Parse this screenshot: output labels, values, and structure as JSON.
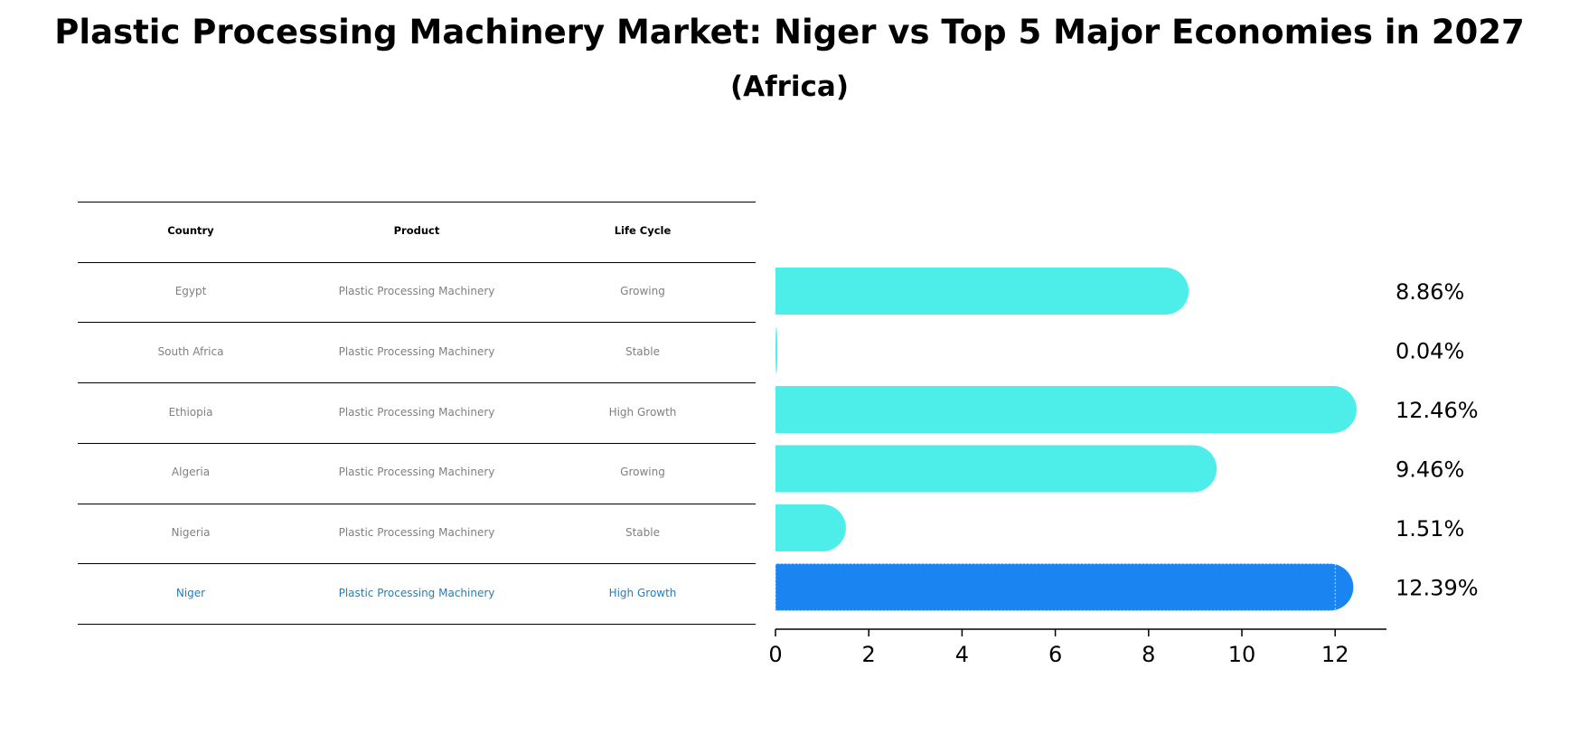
{
  "title": "Plastic Processing Machinery Market: Niger vs Top 5 Major Economies in 2027",
  "subtitle": "(Africa)",
  "colors": {
    "bar": "#4DEEEA",
    "highlight": "#1A84F0",
    "highlight_text": "#1F7FBF"
  },
  "table": {
    "headers": [
      "Country",
      "Product",
      "Life Cycle"
    ],
    "rows": [
      {
        "country": "Egypt",
        "product": "Plastic Processing Machinery",
        "lifecycle": "Growing",
        "highlight": false
      },
      {
        "country": "South Africa",
        "product": "Plastic Processing Machinery",
        "lifecycle": "Stable",
        "highlight": false
      },
      {
        "country": "Ethiopia",
        "product": "Plastic Processing Machinery",
        "lifecycle": "High Growth",
        "highlight": false
      },
      {
        "country": "Algeria",
        "product": "Plastic Processing Machinery",
        "lifecycle": "Growing",
        "highlight": false
      },
      {
        "country": "Nigeria",
        "product": "Plastic Processing Machinery",
        "lifecycle": "Stable",
        "highlight": false
      },
      {
        "country": "Niger",
        "product": "Plastic Processing Machinery",
        "lifecycle": "High Growth",
        "highlight": true
      }
    ]
  },
  "chart_data": {
    "type": "bar",
    "orientation": "horizontal",
    "title": "Plastic Processing Machinery Market: Niger vs Top 5 Major Economies in 2027",
    "subtitle": "(Africa)",
    "categories": [
      "Egypt",
      "South Africa",
      "Ethiopia",
      "Algeria",
      "Nigeria",
      "Niger"
    ],
    "values": [
      8.86,
      0.04,
      12.46,
      9.46,
      1.51,
      12.39
    ],
    "value_labels": [
      "8.86%",
      "0.04%",
      "12.46%",
      "9.46%",
      "1.51%",
      "12.39%"
    ],
    "highlight": "Niger",
    "xlim": [
      0,
      13
    ],
    "xticks": [
      0,
      2,
      4,
      6,
      8,
      10,
      12
    ],
    "xlabel": "",
    "ylabel": "",
    "grid": false
  }
}
